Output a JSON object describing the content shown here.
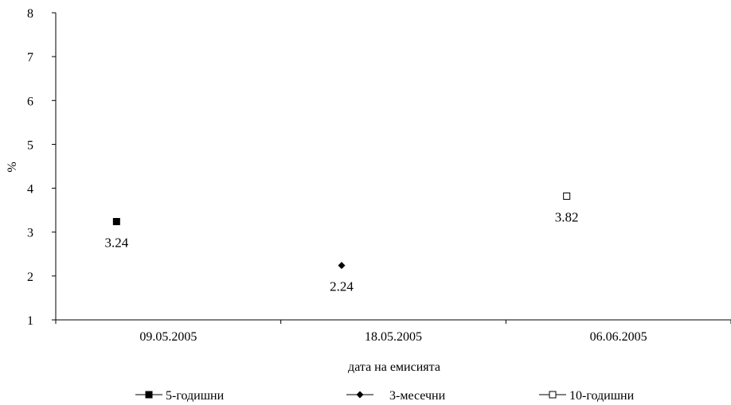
{
  "chart_data": {
    "type": "scatter",
    "title": "",
    "xlabel": "дата на емисията",
    "ylabel": "%",
    "ylim": [
      1,
      8
    ],
    "yticks": [
      1,
      2,
      3,
      4,
      5,
      6,
      7,
      8
    ],
    "grid": false,
    "legend_position": "bottom",
    "categories": [
      "09.05.2005",
      "18.05.2005",
      "06.06.2005"
    ],
    "series": [
      {
        "name": "5-годишни",
        "marker": "filled-square",
        "color": "#000000",
        "category_index": 0,
        "value": 3.24,
        "label": "3.24"
      },
      {
        "name": "3-месечни",
        "marker": "filled-diamond",
        "color": "#000000",
        "category_index": 1,
        "value": 2.24,
        "label": "2.24"
      },
      {
        "name": "10-годишни",
        "marker": "open-square",
        "color": "#000000",
        "category_index": 2,
        "value": 3.82,
        "label": "3.82"
      }
    ]
  }
}
